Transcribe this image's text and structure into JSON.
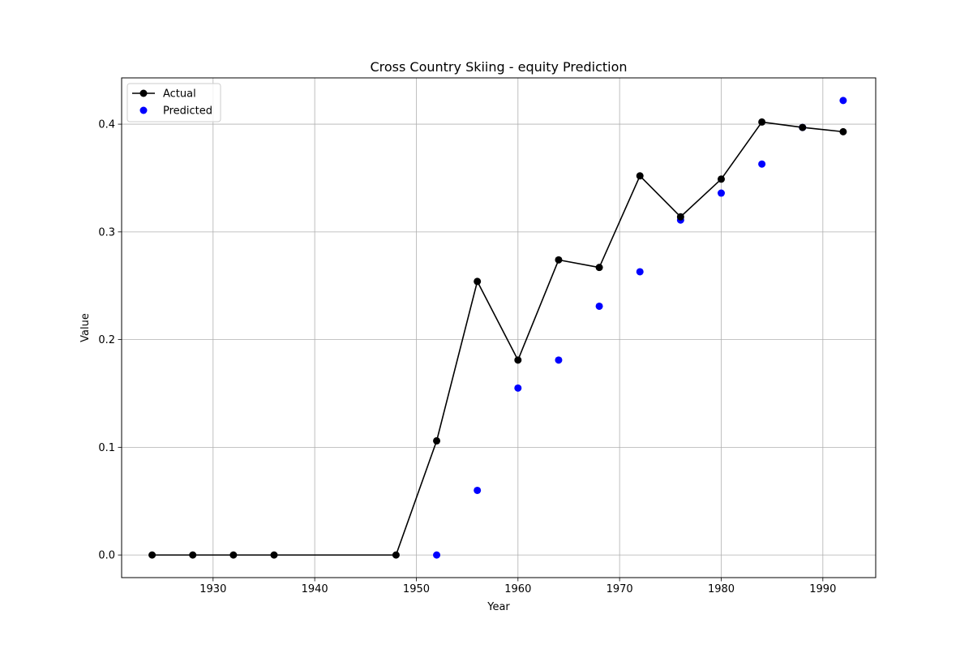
{
  "chart_data": {
    "type": "line",
    "title": "Cross Country Skiing - equity Prediction",
    "xlabel": "Year",
    "ylabel": "Value",
    "xlim": [
      1921,
      1995.2
    ],
    "ylim": [
      -0.021,
      0.443
    ],
    "xticks": [
      1930,
      1940,
      1950,
      1960,
      1970,
      1980,
      1990
    ],
    "yticks": [
      0.0,
      0.1,
      0.2,
      0.3,
      0.4
    ],
    "xtick_labels": [
      "1930",
      "1940",
      "1950",
      "1960",
      "1970",
      "1980",
      "1990"
    ],
    "ytick_labels": [
      "0.0",
      "0.1",
      "0.2",
      "0.3",
      "0.4"
    ],
    "grid": true,
    "legend_position": "top-left",
    "series": [
      {
        "name": "Actual",
        "style": "line-with-markers",
        "color": "#000000",
        "x": [
          1924,
          1928,
          1932,
          1936,
          1948,
          1952,
          1956,
          1960,
          1964,
          1968,
          1972,
          1976,
          1980,
          1984,
          1988,
          1992
        ],
        "y": [
          0.0,
          0.0,
          0.0,
          0.0,
          0.0,
          0.106,
          0.254,
          0.181,
          0.274,
          0.267,
          0.352,
          0.314,
          0.349,
          0.402,
          0.397,
          0.393
        ]
      },
      {
        "name": "Predicted",
        "style": "scatter",
        "color": "#0000ff",
        "x": [
          1952,
          1956,
          1960,
          1964,
          1968,
          1972,
          1976,
          1980,
          1984,
          1988,
          1992
        ],
        "y": [
          0.0,
          0.06,
          0.155,
          0.181,
          0.231,
          0.263,
          0.311,
          0.336,
          0.363,
          0.397,
          0.422
        ]
      }
    ]
  }
}
